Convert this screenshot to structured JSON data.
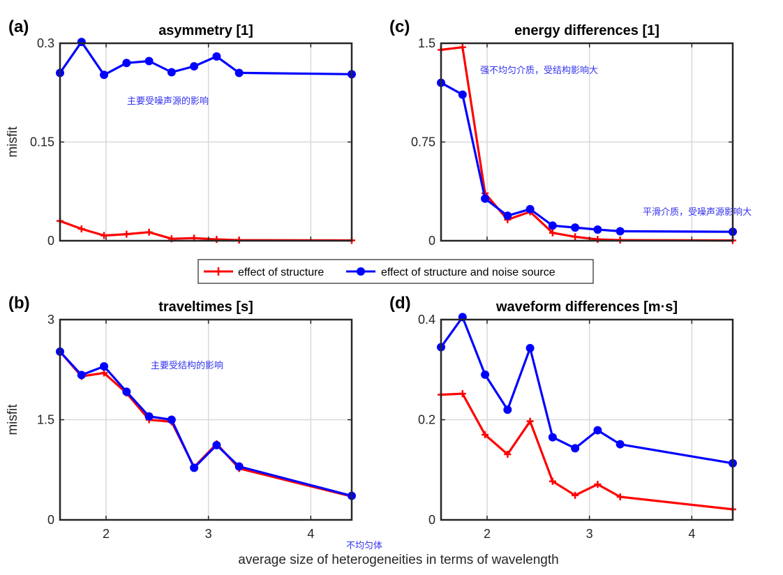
{
  "figure": {
    "xlabel": "average size of heterogeneities in terms of wavelength",
    "legend": {
      "structure": "effect of structure",
      "structure_noise": "effect of structure and noise source"
    },
    "colors": {
      "structure": "#ff0000",
      "structure_noise": "#0000ff",
      "annotation": "#3333ee",
      "grid": "#d9d9d9",
      "axes": "#262626"
    },
    "bottom_note": "不均匀体"
  },
  "chart_data": [
    {
      "panel": "(a)",
      "type": "line",
      "title": "asymmetry [1]",
      "xlabel": "",
      "ylabel": "misfit",
      "xlim": [
        1.55,
        4.4
      ],
      "ylim": [
        0,
        0.3
      ],
      "xticks": [
        2,
        3,
        4
      ],
      "xtick_labels": [
        "",
        "",
        ""
      ],
      "yticks": [
        0,
        0.15,
        0.3
      ],
      "ytick_labels": [
        "0",
        "0.15",
        "0.3"
      ],
      "grid": true,
      "annotation": "主要受噪声源的影响",
      "series": [
        {
          "name": "effect of structure",
          "color": "#ff0000",
          "marker": "plus",
          "x": [
            1.55,
            1.76,
            1.98,
            2.2,
            2.42,
            2.64,
            2.86,
            3.08,
            3.3,
            4.4
          ],
          "y": [
            0.03,
            0.018,
            0.008,
            0.01,
            0.013,
            0.003,
            0.004,
            0.002,
            0.001,
            0.0005
          ]
        },
        {
          "name": "effect of structure and noise source",
          "color": "#0000ff",
          "marker": "circle",
          "x": [
            1.55,
            1.76,
            1.98,
            2.2,
            2.42,
            2.64,
            2.86,
            3.08,
            3.3,
            4.4
          ],
          "y": [
            0.255,
            0.302,
            0.252,
            0.27,
            0.273,
            0.256,
            0.265,
            0.28,
            0.255,
            0.253
          ]
        }
      ]
    },
    {
      "panel": "(c)",
      "type": "line",
      "title": "energy differences [1]",
      "xlabel": "",
      "ylabel": "",
      "xlim": [
        1.55,
        4.4
      ],
      "ylim": [
        0,
        1.5
      ],
      "xticks": [
        2,
        3,
        4
      ],
      "xtick_labels": [
        "",
        "",
        ""
      ],
      "yticks": [
        0,
        0.75,
        1.5
      ],
      "ytick_labels": [
        "0",
        "0.75",
        "1.5"
      ],
      "grid": true,
      "annotation": "强不均匀介质，受结构影响大",
      "annotation2": "平滑介质，受噪声源影响大",
      "series": [
        {
          "name": "effect of structure",
          "color": "#ff0000",
          "marker": "plus",
          "x": [
            1.55,
            1.76,
            1.98,
            2.2,
            2.42,
            2.64,
            2.86,
            3.08,
            3.3,
            4.4
          ],
          "y": [
            1.45,
            1.47,
            0.36,
            0.16,
            0.22,
            0.06,
            0.03,
            0.01,
            0.005,
            0.002
          ]
        },
        {
          "name": "effect of structure and noise source",
          "color": "#0000ff",
          "marker": "circle",
          "x": [
            1.55,
            1.76,
            1.98,
            2.2,
            2.42,
            2.64,
            2.86,
            3.08,
            3.3,
            4.4
          ],
          "y": [
            1.2,
            1.11,
            0.32,
            0.19,
            0.24,
            0.115,
            0.1,
            0.085,
            0.072,
            0.068
          ]
        }
      ]
    },
    {
      "panel": "(b)",
      "type": "line",
      "title": "traveltimes [s]",
      "xlabel": "",
      "ylabel": "misfit",
      "xlim": [
        1.55,
        4.4
      ],
      "ylim": [
        0,
        3
      ],
      "xticks": [
        2,
        3,
        4
      ],
      "xtick_labels": [
        "2",
        "3",
        "4"
      ],
      "yticks": [
        0,
        1.5,
        3
      ],
      "ytick_labels": [
        "0",
        "1.5",
        "3"
      ],
      "grid": true,
      "annotation": "主要受结构的影响",
      "series": [
        {
          "name": "effect of structure",
          "color": "#ff0000",
          "marker": "plus",
          "x": [
            1.55,
            1.76,
            1.98,
            2.2,
            2.42,
            2.64,
            2.86,
            3.08,
            3.3,
            4.4
          ],
          "y": [
            2.52,
            2.15,
            2.2,
            1.9,
            1.5,
            1.47,
            0.79,
            1.14,
            0.77,
            0.35
          ]
        },
        {
          "name": "effect of structure and noise source",
          "color": "#0000ff",
          "marker": "circle",
          "x": [
            1.55,
            1.76,
            1.98,
            2.2,
            2.42,
            2.64,
            2.86,
            3.08,
            3.3,
            4.4
          ],
          "y": [
            2.52,
            2.17,
            2.3,
            1.92,
            1.55,
            1.5,
            0.78,
            1.12,
            0.8,
            0.36
          ]
        }
      ]
    },
    {
      "panel": "(d)",
      "type": "line",
      "title": "waveform differences [m·s]",
      "xlabel": "",
      "ylabel": "",
      "xlim": [
        1.55,
        4.4
      ],
      "ylim": [
        0,
        0.4
      ],
      "xticks": [
        2,
        3,
        4
      ],
      "xtick_labels": [
        "2",
        "3",
        "4"
      ],
      "yticks": [
        0,
        0.2,
        0.4
      ],
      "ytick_labels": [
        "0",
        "0.2",
        "0.4"
      ],
      "grid": true,
      "series": [
        {
          "name": "effect of structure",
          "color": "#ff0000",
          "marker": "plus",
          "x": [
            1.55,
            1.76,
            1.98,
            2.2,
            2.42,
            2.64,
            2.86,
            3.08,
            3.3,
            4.4
          ],
          "y": [
            0.25,
            0.252,
            0.17,
            0.131,
            0.197,
            0.077,
            0.049,
            0.071,
            0.046,
            0.021
          ]
        },
        {
          "name": "effect of structure and noise source",
          "color": "#0000ff",
          "marker": "circle",
          "x": [
            1.55,
            1.76,
            1.98,
            2.2,
            2.42,
            2.64,
            2.86,
            3.08,
            3.3,
            4.4
          ],
          "y": [
            0.345,
            0.405,
            0.29,
            0.22,
            0.343,
            0.165,
            0.143,
            0.179,
            0.151,
            0.113
          ]
        }
      ]
    }
  ]
}
